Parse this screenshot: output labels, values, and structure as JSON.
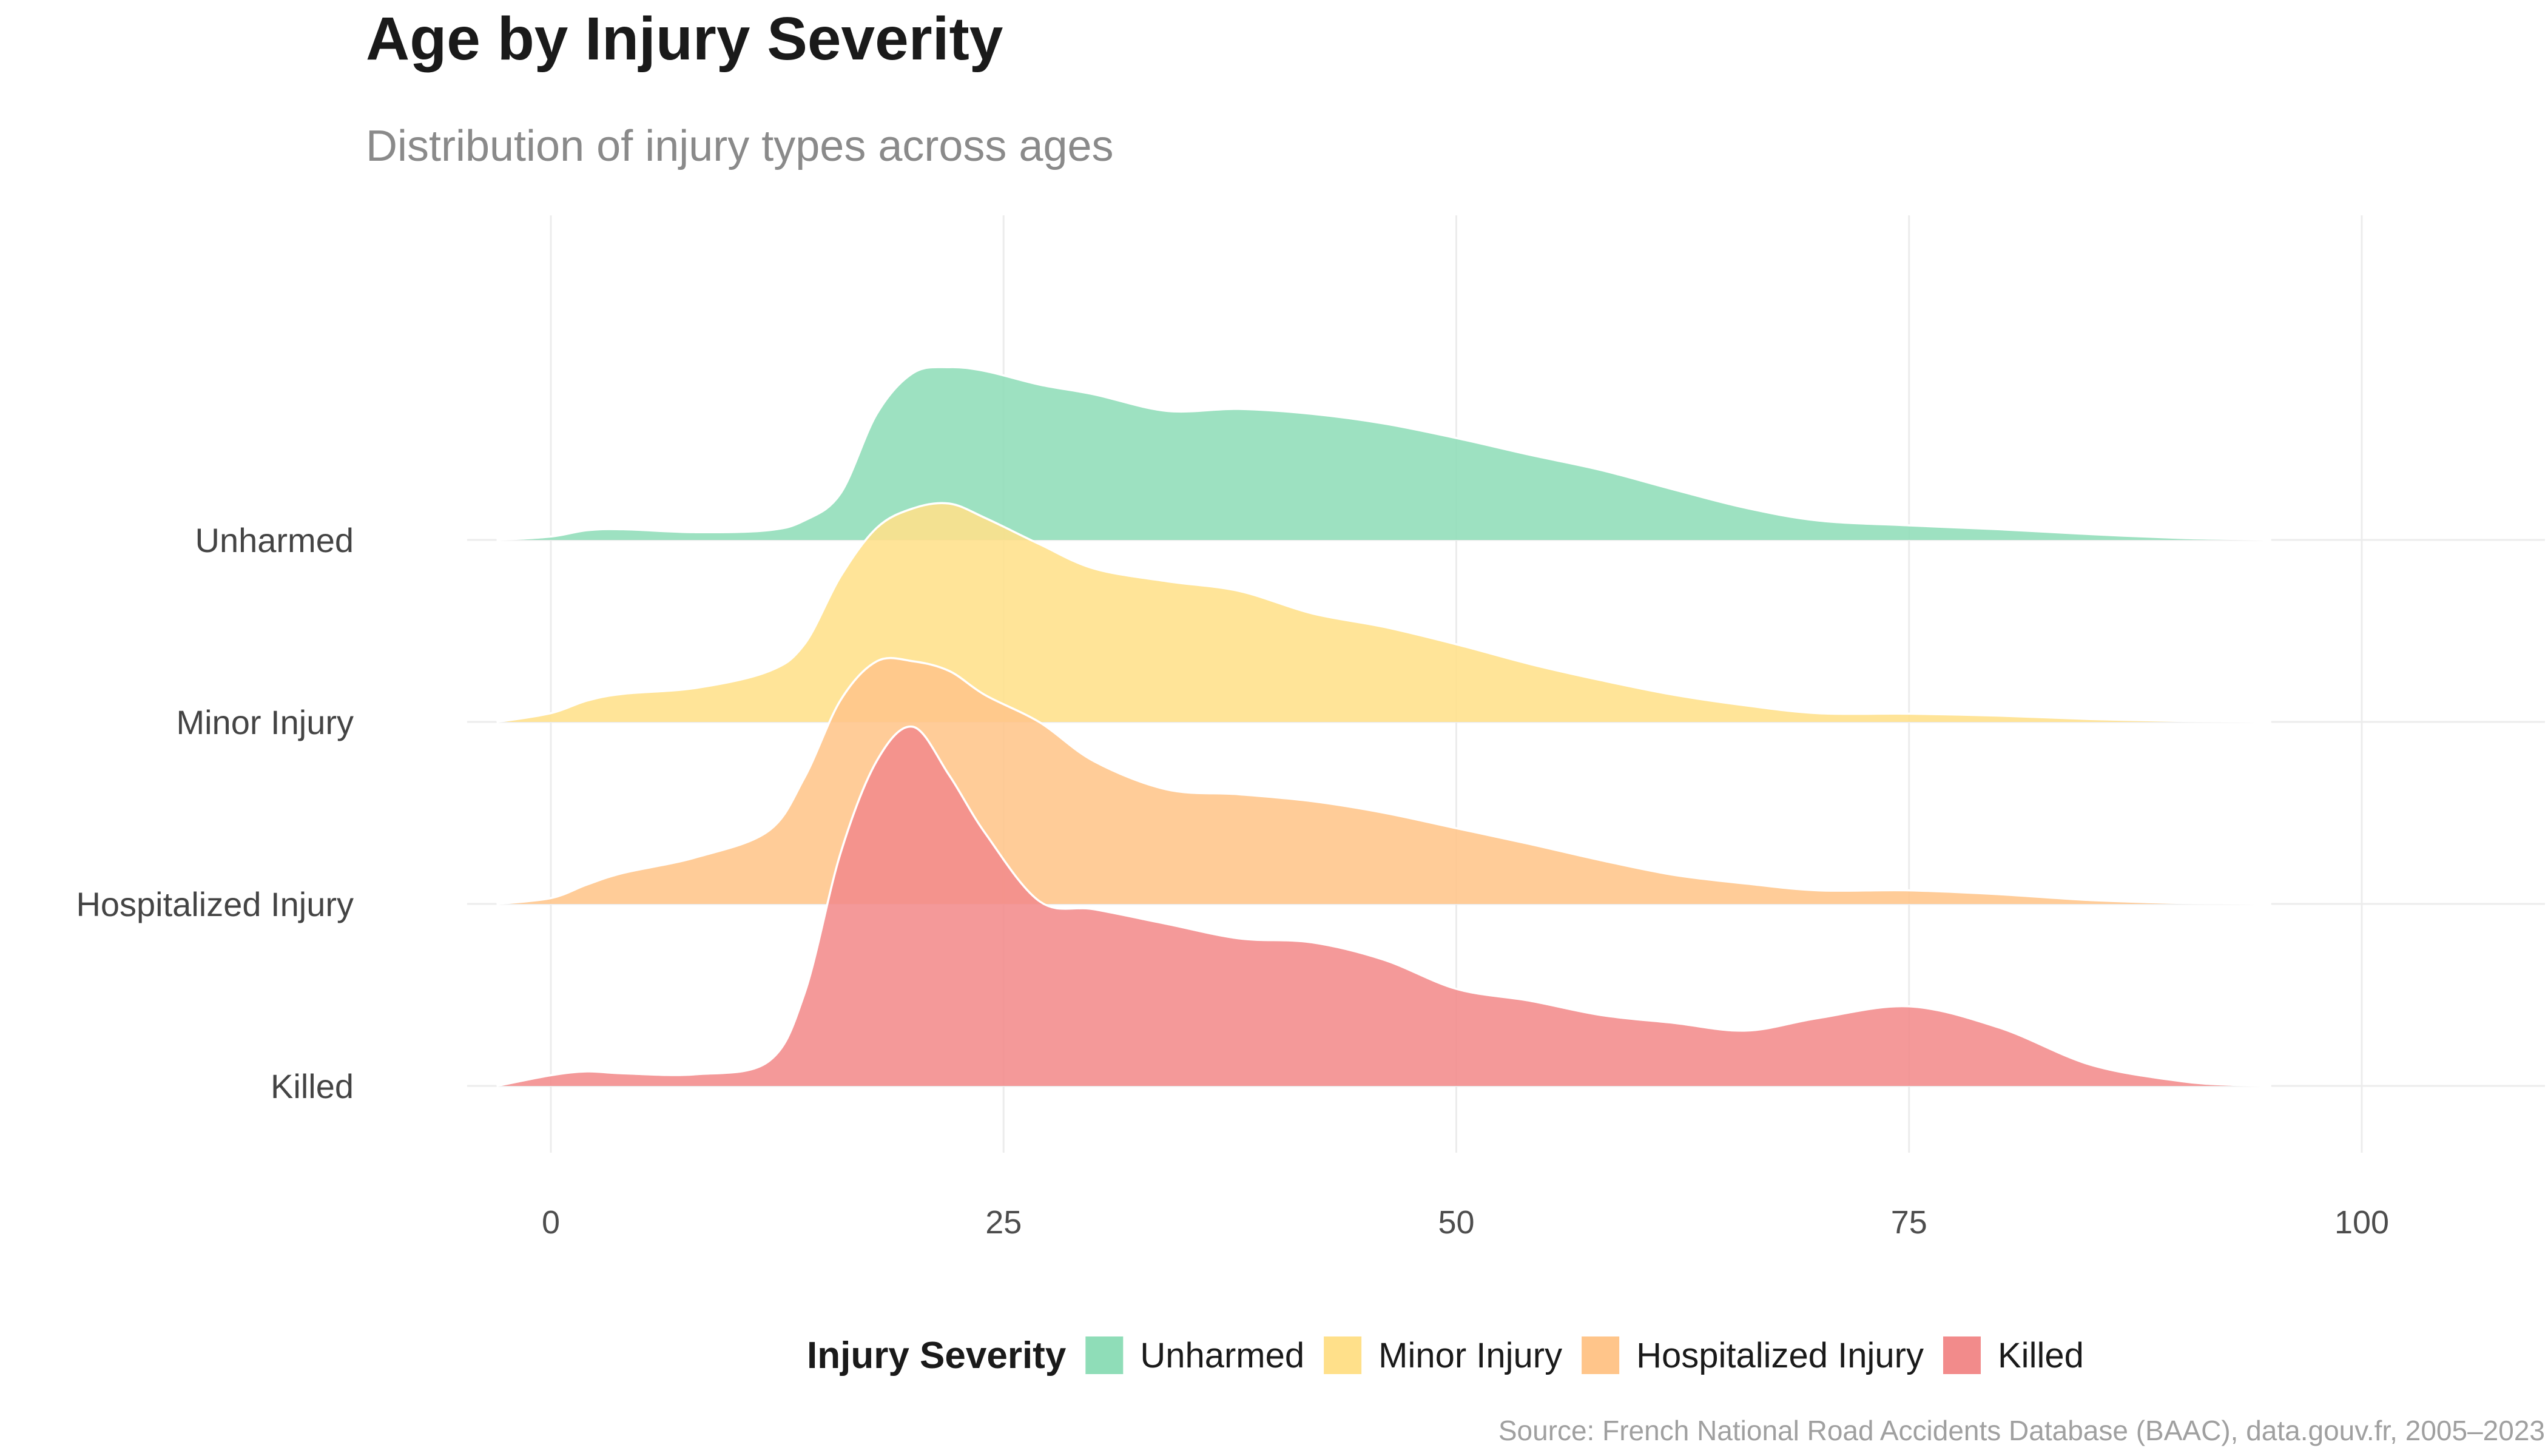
{
  "chart_data": {
    "type": "area",
    "subtype": "ridgeline",
    "title": "Age by Injury Severity",
    "subtitle": "Distribution of injury types across ages",
    "caption": "Source: French National Road Accidents Database (BAAC), data.gouv.fr, 2005–2023",
    "xlabel": "",
    "ylabel": "",
    "xlim": [
      -10,
      110
    ],
    "xticks": [
      0,
      25,
      50,
      75,
      100
    ],
    "grid": true,
    "legend": {
      "title": "Injury Severity",
      "position": "bottom"
    },
    "categories": [
      "Unharmed",
      "Minor Injury",
      "Hospitalized Injury",
      "Killed"
    ],
    "series": [
      {
        "name": "Unharmed",
        "color": "#8FDDB8",
        "x": [
          -3,
          0,
          2,
          4,
          8,
          12,
          14,
          16,
          18,
          20,
          22,
          24,
          27,
          30,
          34,
          38,
          42,
          46,
          50,
          54,
          58,
          62,
          66,
          70,
          75,
          80,
          85,
          90,
          93,
          95
        ],
        "density": [
          0,
          0.035,
          0.1,
          0.11,
          0.08,
          0.1,
          0.2,
          0.48,
          1.3,
          1.72,
          1.78,
          1.74,
          1.6,
          1.5,
          1.33,
          1.35,
          1.3,
          1.2,
          1.05,
          0.88,
          0.72,
          0.52,
          0.33,
          0.2,
          0.15,
          0.11,
          0.06,
          0.02,
          0.01,
          0
        ]
      },
      {
        "name": "Minor Injury",
        "color": "#FFE08A",
        "x": [
          -3,
          0,
          2,
          4,
          8,
          12,
          14,
          16,
          18,
          20,
          22,
          24,
          27,
          30,
          34,
          38,
          42,
          46,
          50,
          54,
          58,
          62,
          66,
          70,
          75,
          80,
          85,
          90,
          93,
          95
        ],
        "density": [
          0,
          0.09,
          0.22,
          0.29,
          0.35,
          0.52,
          0.8,
          1.5,
          2.0,
          2.2,
          2.25,
          2.1,
          1.83,
          1.58,
          1.45,
          1.35,
          1.12,
          0.98,
          0.8,
          0.6,
          0.43,
          0.28,
          0.17,
          0.09,
          0.085,
          0.065,
          0.03,
          0.01,
          0.005,
          0
        ]
      },
      {
        "name": "Hospitalized Injury",
        "color": "#FFC58A",
        "x": [
          -3,
          0,
          2,
          4,
          8,
          12,
          14,
          16,
          18,
          20,
          22,
          24,
          27,
          30,
          34,
          38,
          42,
          46,
          50,
          54,
          58,
          62,
          66,
          70,
          75,
          80,
          85,
          90,
          93,
          95
        ],
        "density": [
          0,
          0.06,
          0.2,
          0.32,
          0.48,
          0.75,
          1.3,
          2.1,
          2.5,
          2.5,
          2.4,
          2.15,
          1.87,
          1.47,
          1.18,
          1.13,
          1.06,
          0.94,
          0.78,
          0.62,
          0.45,
          0.3,
          0.21,
          0.14,
          0.14,
          0.1,
          0.04,
          0.01,
          0.005,
          0
        ]
      },
      {
        "name": "Killed",
        "color": "#F28B8B",
        "x": [
          -3,
          0,
          2,
          4,
          8,
          12,
          14,
          16,
          18,
          20,
          22,
          24,
          27,
          30,
          34,
          38,
          42,
          46,
          50,
          54,
          58,
          62,
          66,
          70,
          75,
          80,
          85,
          90,
          93,
          95
        ],
        "density": [
          0,
          0.11,
          0.15,
          0.13,
          0.12,
          0.25,
          0.95,
          2.4,
          3.35,
          3.7,
          3.2,
          2.6,
          1.9,
          1.82,
          1.67,
          1.52,
          1.48,
          1.3,
          1.0,
          0.88,
          0.73,
          0.65,
          0.57,
          0.7,
          0.82,
          0.6,
          0.22,
          0.05,
          0.01,
          0
        ]
      }
    ]
  }
}
